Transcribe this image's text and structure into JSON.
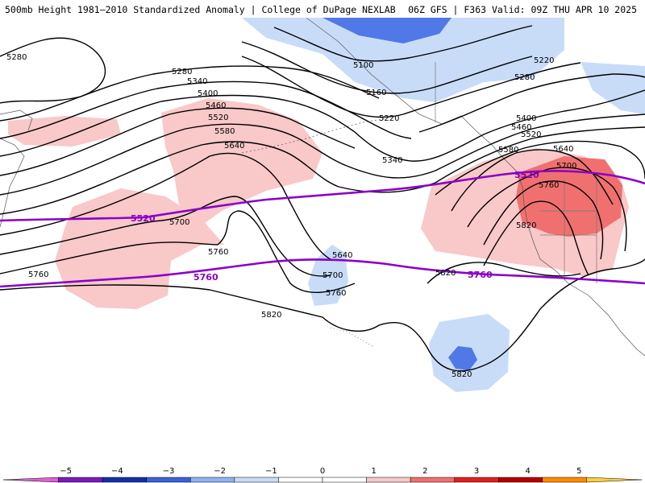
{
  "header": {
    "left_title": "500mb Height 1981–2010 Standardized Anomaly | College of DuPage NEXLAB",
    "right_title": "06Z GFS | F363 Valid: 09Z THU APR 10 2025"
  },
  "map": {
    "height_contour_labels": [
      "5280",
      "5280",
      "5340",
      "5400",
      "5460",
      "5520",
      "5580",
      "5640",
      "5700",
      "5760",
      "5760",
      "5100",
      "5160",
      "5220",
      "5340",
      "5640",
      "5700",
      "5760",
      "5820",
      "5820",
      "5220",
      "5280",
      "5400",
      "5460",
      "5520",
      "5580",
      "5640",
      "5700",
      "5760",
      "5820"
    ],
    "highlighted_contour_labels": [
      "5520",
      "5760",
      "5520",
      "5760"
    ],
    "highlight_color": "#8b00c8",
    "anomaly_colors": {
      "positive_light": "#f9c8c8",
      "positive_strong": "#f07070",
      "negative_light": "#c8dcf8",
      "negative_strong": "#5078e6"
    }
  },
  "colorbar": {
    "ticks": [
      "−5",
      "−4",
      "−3",
      "−2",
      "−1",
      "0",
      "1",
      "2",
      "3",
      "4",
      "5"
    ],
    "colors": [
      "#e060d8",
      "#7a1ab8",
      "#1030a8",
      "#3a62d8",
      "#8cb4f0",
      "#c8dcf8",
      "#ffffff",
      "#ffffff",
      "#f9c8c8",
      "#f07070",
      "#e02020",
      "#b40000",
      "#ff8c00",
      "#ffd040"
    ]
  }
}
